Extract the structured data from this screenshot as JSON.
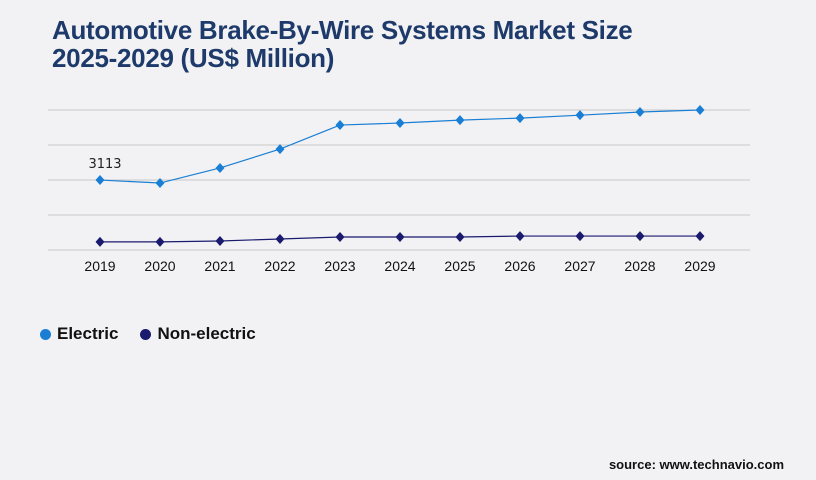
{
  "title": "Automotive Brake-By-Wire Systems Market Size 2025-2029 (US$ Million)",
  "source": "source: www.technavio.com",
  "chart_data": {
    "type": "line",
    "title": "Automotive Brake-By-Wire Systems Market Size 2025-2029 (US$ Million)",
    "categories": [
      "2019",
      "2020",
      "2021",
      "2022",
      "2023",
      "2024",
      "2025",
      "2026",
      "2027",
      "2028",
      "2029"
    ],
    "series": [
      {
        "name": "Electric",
        "color": "#1a7fd4",
        "values": [
          3113,
          2980,
          3650,
          4490,
          5560,
          5650,
          5780,
          5870,
          6000,
          6140,
          6230
        ]
      },
      {
        "name": "Non-electric",
        "color": "#1a1a6e",
        "values": [
          360,
          360,
          400,
          490,
          580,
          580,
          580,
          620,
          620,
          620,
          620
        ]
      }
    ],
    "data_labels": [
      {
        "series": "Electric",
        "category": "2019",
        "text": "3113"
      }
    ],
    "ylim": [
      0,
      6230
    ],
    "grid": true,
    "legend_position": "bottom-left"
  }
}
